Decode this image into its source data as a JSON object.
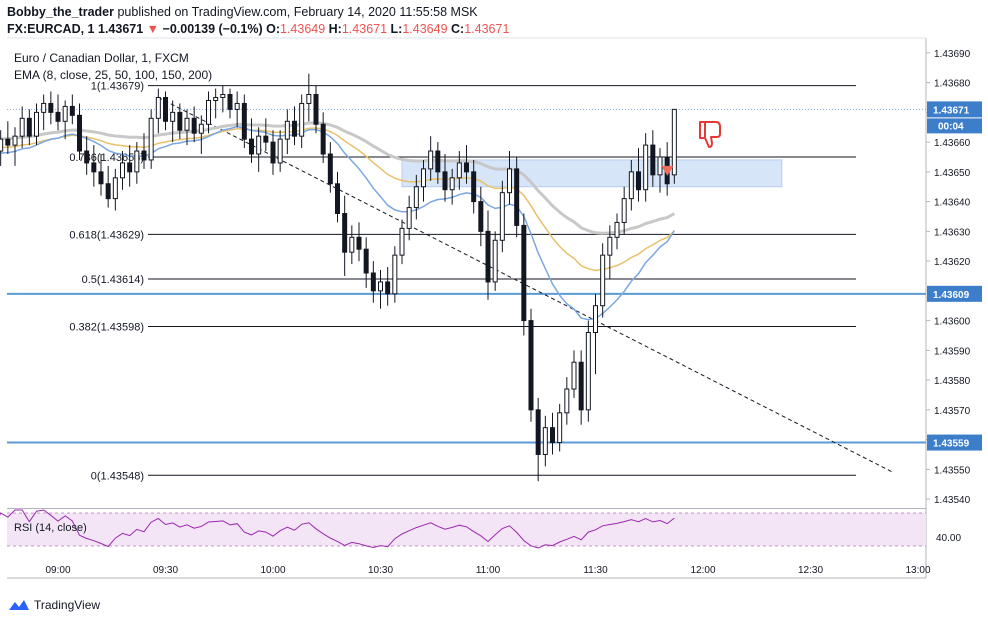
{
  "header": {
    "author": "Bobby_the_trader",
    "published": " published on TradingView.com, February 14, 2020 11:55:58 MSK",
    "symbol": "FX:EURCAD, 1",
    "last": "1.43671",
    "change": "−0.00139 (−0.1%)",
    "o_label": "O:",
    "o": "1.43649",
    "h_label": "H:",
    "h": "1.43671",
    "l_label": "L:",
    "l": "1.43649",
    "c_label": "C:",
    "c": "1.43671"
  },
  "legend": {
    "line1": "Euro / Canadian Dollar, 1, FXCM",
    "line2": "EMA (8, close, 25, 50, 100, 150, 200)"
  },
  "footer": {
    "brand": "TradingView"
  },
  "colors": {
    "candle": "#131722",
    "horizontal_level": "#5b9bd5",
    "zone": "#cfe0f7",
    "ema_fast": "#e8c06a",
    "ema_slow": "#c8c8c8",
    "ema_blue": "#7aa7e0",
    "rsi_bg": "#f3e5f5",
    "rsi_line": "#9c27b0",
    "tag_blue": "#3d7ecb"
  },
  "chart_data": {
    "type": "candlestick",
    "title": "Euro / Canadian Dollar, 1, FXCM",
    "ylim": [
      1.43537,
      1.43695
    ],
    "y_ticks": [
      1.4354,
      1.4355,
      1.4356,
      1.4357,
      1.4358,
      1.4359,
      1.436,
      1.4361,
      1.4362,
      1.4363,
      1.4364,
      1.4365,
      1.4366,
      1.4367,
      1.4368,
      1.4369
    ],
    "y_tick_labels": [
      "1.43540",
      "1.43550",
      "1.43560",
      "1.43570",
      "1.43580",
      "1.43590",
      "1.43600",
      "1.43610",
      "1.43620",
      "1.43630",
      "1.43640",
      "1.43650",
      "1.43660",
      "1.43670",
      "1.43680",
      "1.43690"
    ],
    "x_tick_labels": [
      "09:00",
      "09:30",
      "10:00",
      "10:30",
      "11:00",
      "11:30",
      "12:00",
      "12:30",
      "13:00"
    ],
    "x_tick_minutes": [
      0,
      30,
      60,
      90,
      120,
      150,
      180,
      210,
      240
    ],
    "xlim_minutes": [
      -18,
      242
    ],
    "fibonacci": [
      {
        "label": "1(1.43679)",
        "value": 1.43679
      },
      {
        "label": "0.786(1.43655)",
        "value": 1.43655
      },
      {
        "label": "0.618(1.43629)",
        "value": 1.43629
      },
      {
        "label": "0.5(1.43614)",
        "value": 1.43614
      },
      {
        "label": "0.382(1.43598)",
        "value": 1.43598
      },
      {
        "label": "0(1.43548)",
        "value": 1.43548
      }
    ],
    "horizontal_levels": [
      {
        "label": "1.43609",
        "value": 1.43609
      },
      {
        "label": "1.43559",
        "value": 1.43559
      }
    ],
    "current_price": {
      "label": "1.43671",
      "value": 1.43671,
      "countdown": "00:04"
    },
    "zone": {
      "from_minute": 96,
      "to_minute": 202,
      "low": 1.43645,
      "high": 1.43654
    },
    "trendline": {
      "from": [
        28,
        1.43675
      ],
      "to": [
        233,
        1.43549
      ]
    },
    "rsi": {
      "label": "RSI (14, close)",
      "tick_label": "40.00"
    },
    "ohlc": [
      [
        -18,
        1.43662,
        1.43665,
        1.43653,
        1.43657
      ],
      [
        -16,
        1.43657,
        1.43664,
        1.43652,
        1.43661
      ],
      [
        -14,
        1.43661,
        1.43667,
        1.43656,
        1.43659
      ],
      [
        -12,
        1.43659,
        1.43665,
        1.43652,
        1.43662
      ],
      [
        -10,
        1.43662,
        1.43672,
        1.43658,
        1.43668
      ],
      [
        -8,
        1.43668,
        1.43671,
        1.43659,
        1.43662
      ],
      [
        -6,
        1.43662,
        1.43673,
        1.43659,
        1.4367
      ],
      [
        -4,
        1.4367,
        1.43676,
        1.43664,
        1.43673
      ],
      [
        -2,
        1.43673,
        1.43677,
        1.43666,
        1.4367
      ],
      [
        0,
        1.4367,
        1.43676,
        1.43664,
        1.43667
      ],
      [
        2,
        1.43667,
        1.43674,
        1.43661,
        1.43672
      ],
      [
        4,
        1.43672,
        1.43676,
        1.43666,
        1.43669
      ],
      [
        6,
        1.43669,
        1.43673,
        1.43654,
        1.43657
      ],
      [
        8,
        1.43657,
        1.43662,
        1.43649,
        1.43653
      ],
      [
        10,
        1.43653,
        1.43659,
        1.43645,
        1.4365
      ],
      [
        12,
        1.4365,
        1.43656,
        1.43642,
        1.43646
      ],
      [
        14,
        1.43646,
        1.43652,
        1.43638,
        1.43641
      ],
      [
        16,
        1.43641,
        1.43651,
        1.43637,
        1.43648
      ],
      [
        18,
        1.43648,
        1.43657,
        1.43644,
        1.43653
      ],
      [
        20,
        1.43653,
        1.43659,
        1.43645,
        1.4365
      ],
      [
        22,
        1.4365,
        1.4366,
        1.43646,
        1.43657
      ],
      [
        24,
        1.43657,
        1.43663,
        1.43651,
        1.43654
      ],
      [
        26,
        1.43654,
        1.43671,
        1.43651,
        1.43668
      ],
      [
        28,
        1.43668,
        1.43678,
        1.43663,
        1.43675
      ],
      [
        30,
        1.43675,
        1.43677,
        1.43664,
        1.43667
      ],
      [
        32,
        1.43667,
        1.43674,
        1.4366,
        1.4367
      ],
      [
        34,
        1.4367,
        1.43673,
        1.43661,
        1.43664
      ],
      [
        36,
        1.43664,
        1.43671,
        1.43659,
        1.43668
      ],
      [
        38,
        1.43668,
        1.43672,
        1.4366,
        1.43663
      ],
      [
        40,
        1.43663,
        1.43669,
        1.43656,
        1.43666
      ],
      [
        42,
        1.43666,
        1.43677,
        1.43663,
        1.43674
      ],
      [
        44,
        1.43674,
        1.43678,
        1.43668,
        1.43675
      ],
      [
        46,
        1.43675,
        1.43679,
        1.4367,
        1.43676
      ],
      [
        48,
        1.43676,
        1.43678,
        1.43668,
        1.43671
      ],
      [
        50,
        1.43671,
        1.43677,
        1.43665,
        1.43673
      ],
      [
        52,
        1.43673,
        1.43676,
        1.43658,
        1.43661
      ],
      [
        54,
        1.43661,
        1.43668,
        1.43653,
        1.43656
      ],
      [
        56,
        1.43656,
        1.43665,
        1.4365,
        1.43662
      ],
      [
        58,
        1.43662,
        1.43668,
        1.43657,
        1.4366
      ],
      [
        60,
        1.4366,
        1.43664,
        1.43649,
        1.43653
      ],
      [
        62,
        1.43653,
        1.43664,
        1.4365,
        1.43661
      ],
      [
        64,
        1.43661,
        1.43671,
        1.43656,
        1.43667
      ],
      [
        66,
        1.43667,
        1.43672,
        1.43659,
        1.43662
      ],
      [
        68,
        1.43662,
        1.43676,
        1.43658,
        1.43673
      ],
      [
        70,
        1.43673,
        1.43683,
        1.43667,
        1.43676
      ],
      [
        72,
        1.43676,
        1.43679,
        1.43663,
        1.43666
      ],
      [
        74,
        1.43666,
        1.4367,
        1.43653,
        1.43656
      ],
      [
        76,
        1.43656,
        1.4366,
        1.43643,
        1.43646
      ],
      [
        78,
        1.43646,
        1.4365,
        1.43633,
        1.43636
      ],
      [
        80,
        1.43636,
        1.43642,
        1.43615,
        1.43623
      ],
      [
        82,
        1.43623,
        1.43632,
        1.43619,
        1.43628
      ],
      [
        84,
        1.43628,
        1.43633,
        1.4362,
        1.43624
      ],
      [
        86,
        1.43624,
        1.43628,
        1.43611,
        1.43616
      ],
      [
        88,
        1.43616,
        1.4362,
        1.43606,
        1.4361
      ],
      [
        90,
        1.4361,
        1.43617,
        1.43604,
        1.43613
      ],
      [
        92,
        1.43613,
        1.43618,
        1.43605,
        1.43609
      ],
      [
        94,
        1.43609,
        1.43625,
        1.43606,
        1.43622
      ],
      [
        96,
        1.43622,
        1.43634,
        1.43619,
        1.43631
      ],
      [
        98,
        1.43631,
        1.43642,
        1.43627,
        1.43638
      ],
      [
        100,
        1.43638,
        1.43649,
        1.43634,
        1.43645
      ],
      [
        102,
        1.43645,
        1.43654,
        1.4364,
        1.43651
      ],
      [
        104,
        1.43651,
        1.43662,
        1.43647,
        1.43657
      ],
      [
        106,
        1.43657,
        1.4366,
        1.43646,
        1.4365
      ],
      [
        108,
        1.4365,
        1.43656,
        1.4364,
        1.43644
      ],
      [
        110,
        1.43644,
        1.43651,
        1.43639,
        1.43648
      ],
      [
        112,
        1.43648,
        1.43657,
        1.43644,
        1.43653
      ],
      [
        114,
        1.43653,
        1.43659,
        1.43646,
        1.4365
      ],
      [
        116,
        1.4365,
        1.43654,
        1.43636,
        1.4364
      ],
      [
        118,
        1.4364,
        1.43645,
        1.43625,
        1.4363
      ],
      [
        120,
        1.4363,
        1.43637,
        1.43607,
        1.43613
      ],
      [
        122,
        1.43613,
        1.4363,
        1.4361,
        1.43627
      ],
      [
        124,
        1.43627,
        1.43647,
        1.43623,
        1.43643
      ],
      [
        126,
        1.43643,
        1.43657,
        1.43639,
        1.43651
      ],
      [
        128,
        1.43651,
        1.43655,
        1.43628,
        1.43632
      ],
      [
        130,
        1.43632,
        1.43636,
        1.43595,
        1.436
      ],
      [
        132,
        1.436,
        1.43604,
        1.43566,
        1.4357
      ],
      [
        134,
        1.4357,
        1.43574,
        1.43546,
        1.43555
      ],
      [
        136,
        1.43555,
        1.43568,
        1.43551,
        1.43564
      ],
      [
        138,
        1.43564,
        1.43569,
        1.43555,
        1.43559
      ],
      [
        140,
        1.43559,
        1.43572,
        1.43556,
        1.43569
      ],
      [
        142,
        1.43569,
        1.43581,
        1.43565,
        1.43577
      ],
      [
        144,
        1.43577,
        1.4359,
        1.43574,
        1.43586
      ],
      [
        146,
        1.43586,
        1.4359,
        1.43565,
        1.4357
      ],
      [
        148,
        1.4357,
        1.436,
        1.43566,
        1.43596
      ],
      [
        150,
        1.43596,
        1.43609,
        1.43582,
        1.43605
      ],
      [
        152,
        1.43605,
        1.43626,
        1.43601,
        1.43622
      ],
      [
        154,
        1.43622,
        1.43632,
        1.43614,
        1.43628
      ],
      [
        156,
        1.43628,
        1.43636,
        1.43624,
        1.43633
      ],
      [
        158,
        1.43633,
        1.43645,
        1.43629,
        1.43641
      ],
      [
        160,
        1.43641,
        1.43654,
        1.43637,
        1.4365
      ],
      [
        162,
        1.4365,
        1.43658,
        1.4364,
        1.43644
      ],
      [
        164,
        1.43644,
        1.43663,
        1.4364,
        1.43659
      ],
      [
        166,
        1.43659,
        1.43664,
        1.43645,
        1.43649
      ],
      [
        168,
        1.43649,
        1.43658,
        1.43643,
        1.43655
      ],
      [
        170,
        1.43655,
        1.4366,
        1.43642,
        1.43646
      ],
      [
        172,
        1.43649,
        1.43671,
        1.43646,
        1.43671
      ]
    ]
  }
}
